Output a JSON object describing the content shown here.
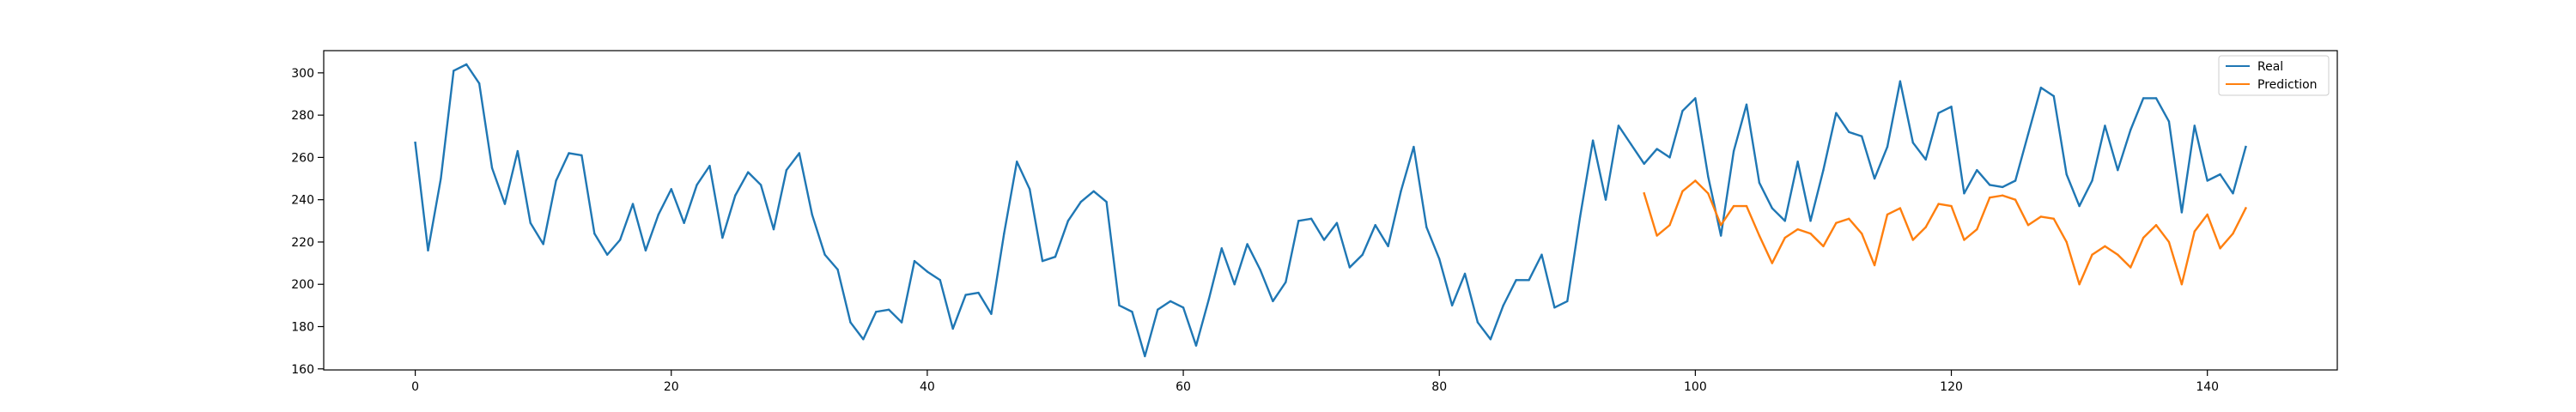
{
  "chart_data": {
    "type": "line",
    "title": "",
    "xlabel": "",
    "ylabel": "",
    "xlim": [
      -7.15,
      150.15
    ],
    "ylim": [
      159.5,
      310.5
    ],
    "x_ticks": [
      0,
      20,
      40,
      60,
      80,
      100,
      120,
      140
    ],
    "y_ticks": [
      160,
      180,
      200,
      220,
      240,
      260,
      280,
      300
    ],
    "grid": false,
    "legend_position": "top-right",
    "series": [
      {
        "name": "Real",
        "color": "#1f77b4",
        "x_start": 0,
        "values": [
          267,
          216,
          250,
          301,
          304,
          295,
          255,
          238,
          263,
          229,
          219,
          249,
          262,
          261,
          224,
          214,
          221,
          238,
          216,
          233,
          245,
          229,
          247,
          256,
          222,
          242,
          253,
          247,
          226,
          254,
          262,
          233,
          214,
          207,
          182,
          174,
          187,
          188,
          182,
          211,
          206,
          202,
          179,
          195,
          196,
          186,
          224,
          258,
          245,
          211,
          213,
          230,
          239,
          244,
          239,
          190,
          187,
          166,
          188,
          192,
          189,
          171,
          193,
          217,
          200,
          219,
          207,
          192,
          201,
          230,
          231,
          221,
          229,
          208,
          214,
          228,
          218,
          244,
          265,
          227,
          212,
          190,
          205,
          182,
          174,
          190,
          202,
          202,
          214,
          189,
          192,
          232,
          268,
          240,
          275,
          266,
          257,
          264,
          260,
          282,
          288,
          251,
          223,
          263,
          285,
          248,
          236,
          230,
          258,
          230,
          254,
          281,
          272,
          270,
          250,
          265,
          296,
          267,
          259,
          281,
          284,
          243,
          254,
          247,
          246,
          249,
          271,
          293,
          289,
          252,
          237,
          249,
          275,
          254,
          273,
          288,
          288,
          277,
          234,
          275,
          249,
          252,
          243,
          265
        ]
      },
      {
        "name": "Prediction",
        "color": "#ff7f0e",
        "x_start": 96,
        "values": [
          243,
          223,
          228,
          244,
          249,
          243,
          228,
          237,
          237,
          223,
          210,
          222,
          226,
          224,
          218,
          229,
          231,
          224,
          209,
          233,
          236,
          221,
          227,
          238,
          237,
          221,
          226,
          241,
          242,
          240,
          228,
          232,
          231,
          220,
          200,
          214,
          218,
          214,
          208,
          222,
          228,
          220,
          200,
          225,
          233,
          217,
          224,
          236
        ]
      }
    ]
  }
}
